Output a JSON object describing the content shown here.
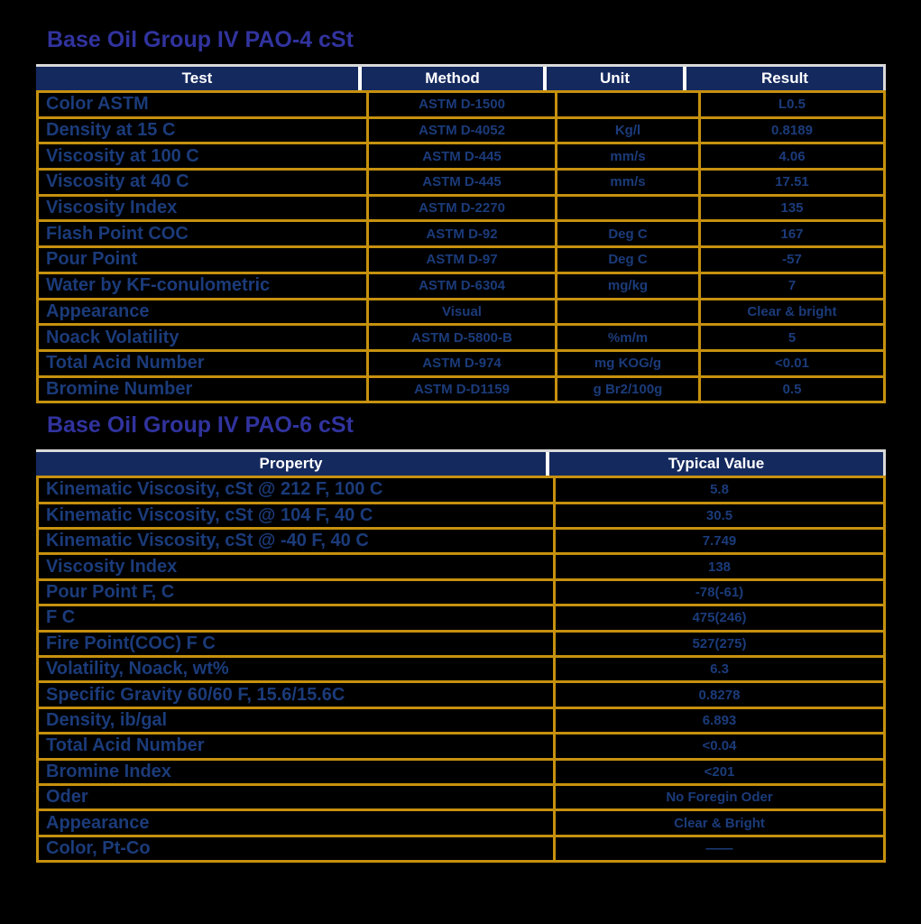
{
  "colors": {
    "background": "#000000",
    "gold": "#C6910E",
    "header_bg": "#14295E",
    "header_text": "#FFFFFF",
    "header_outline": "#D9D9D9",
    "body_text": "#1B3B7A",
    "title_text": "#31339E"
  },
  "table1": {
    "title": "Base Oil Group IV PAO-4 cSt",
    "columns": [
      "Test",
      "Method",
      "Unit",
      "Result"
    ],
    "rows": [
      {
        "test": "Color ASTM",
        "method": "ASTM D-1500",
        "unit": "",
        "result": "L0.5"
      },
      {
        "test": "Density at 15 C",
        "method": "ASTM D-4052",
        "unit": "Kg/l",
        "result": "0.8189"
      },
      {
        "test": "Viscosity at 100 C",
        "method": "ASTM D-445",
        "unit": "mm/s",
        "result": "4.06"
      },
      {
        "test": "Viscosity at 40 C",
        "method": "ASTM D-445",
        "unit": "mm/s",
        "result": "17.51"
      },
      {
        "test": "Viscosity Index",
        "method": "ASTM D-2270",
        "unit": "",
        "result": "135"
      },
      {
        "test": "Flash Point COC",
        "method": "ASTM D-92",
        "unit": "Deg C",
        "result": "167"
      },
      {
        "test": "Pour Point",
        "method": "ASTM D-97",
        "unit": "Deg C",
        "result": "-57"
      },
      {
        "test": "Water by KF-conulometric",
        "method": "ASTM D-6304",
        "unit": "mg/kg",
        "result": "7"
      },
      {
        "test": "Appearance",
        "method": "Visual",
        "unit": "",
        "result": "Clear & bright"
      },
      {
        "test": "Noack Volatility",
        "method": "ASTM D-5800-B",
        "unit": "%m/m",
        "result": "5"
      },
      {
        "test": "Total Acid Number",
        "method": "ASTM D-974",
        "unit": "mg KOG/g",
        "result": "<0.01"
      },
      {
        "test": "Bromine Number",
        "method": "ASTM D-D1159",
        "unit": "g Br2/100g",
        "result": "0.5"
      }
    ]
  },
  "table2": {
    "title": "Base Oil Group IV PAO-6 cSt",
    "columns": [
      "Property",
      "Typical Value"
    ],
    "rows": [
      {
        "property": "Kinematic Viscosity, cSt @ 212 F, 100 C",
        "value": "5.8"
      },
      {
        "property": "Kinematic Viscosity, cSt @ 104 F, 40 C",
        "value": "30.5"
      },
      {
        "property": "Kinematic Viscosity, cSt @ -40 F, 40 C",
        "value": "7.749"
      },
      {
        "property": "Viscosity Index",
        "value": "138"
      },
      {
        "property": "Pour Point F, C",
        "value": "-78(-61)"
      },
      {
        "property": "F C",
        "value": "475(246)"
      },
      {
        "property": "Fire Point(COC) F C",
        "value": "527(275)"
      },
      {
        "property": "Volatility, Noack, wt%",
        "value": "6.3"
      },
      {
        "property": "Specific Gravity 60/60 F, 15.6/15.6C",
        "value": "0.8278"
      },
      {
        "property": "Density, ib/gal",
        "value": "6.893"
      },
      {
        "property": "Total Acid Number",
        "value": "<0.04"
      },
      {
        "property": "Bromine Index",
        "value": "<201"
      },
      {
        "property": "Oder",
        "value": "No Foregin Oder"
      },
      {
        "property": "Appearance",
        "value": "Clear & Bright"
      },
      {
        "property": "Color, Pt-Co",
        "value": "——"
      }
    ]
  }
}
